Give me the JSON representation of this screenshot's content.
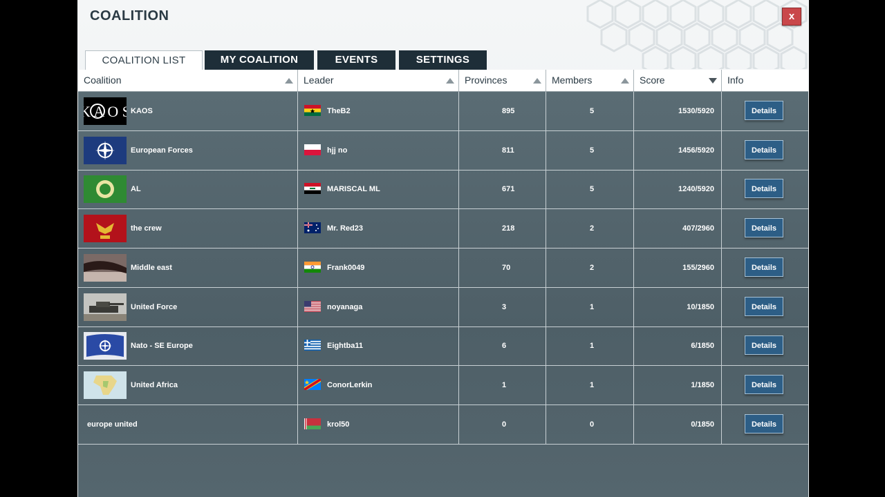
{
  "window": {
    "title": "COALITION",
    "close_label": "x"
  },
  "tabs": [
    {
      "label": "COALITION LIST",
      "active": true
    },
    {
      "label": "MY COALITION",
      "active": false
    },
    {
      "label": "EVENTS",
      "active": false
    },
    {
      "label": "SETTINGS",
      "active": false
    }
  ],
  "columns": {
    "coalition": "Coalition",
    "leader": "Leader",
    "provinces": "Provinces",
    "members": "Members",
    "score": "Score",
    "info": "Info"
  },
  "sort": {
    "column": "Score",
    "direction": "descending"
  },
  "rows": [
    {
      "coalition": "KAOS",
      "logo": "kaos-logo",
      "leader": "TheB2",
      "flag": "ghana-flag",
      "provinces": "895",
      "members": "5",
      "score": "1530/5920",
      "details": "Details"
    },
    {
      "coalition": "European Forces",
      "logo": "nato-logo",
      "leader": "hjj no",
      "flag": "poland-flag",
      "provinces": "811",
      "members": "5",
      "score": "1456/5920",
      "details": "Details"
    },
    {
      "coalition": "AL",
      "logo": "arab-league-logo",
      "leader": "MARISCAL ML",
      "flag": "iraq-flag",
      "provinces": "671",
      "members": "5",
      "score": "1240/5920",
      "details": "Details"
    },
    {
      "coalition": "the crew",
      "logo": "eagle-emblem-logo",
      "leader": "Mr. Red23",
      "flag": "australia-flag",
      "provinces": "218",
      "members": "2",
      "score": "407/2960",
      "details": "Details"
    },
    {
      "coalition": "Middle east",
      "logo": "photo-logo",
      "leader": "Frank0049",
      "flag": "india-flag",
      "provinces": "70",
      "members": "2",
      "score": "155/2960",
      "details": "Details"
    },
    {
      "coalition": "United Force",
      "logo": "tank-logo",
      "leader": "noyanaga",
      "flag": "usa-flag",
      "provinces": "3",
      "members": "1",
      "score": "10/1850",
      "details": "Details"
    },
    {
      "coalition": "Nato - SE Europe",
      "logo": "nato-waving-logo",
      "leader": "Eightba11",
      "flag": "greece-flag",
      "provinces": "6",
      "members": "1",
      "score": "6/1850",
      "details": "Details"
    },
    {
      "coalition": "United Africa",
      "logo": "africa-map-logo",
      "leader": "ConorLerkin",
      "flag": "dr-congo-flag",
      "provinces": "1",
      "members": "1",
      "score": "1/1850",
      "details": "Details"
    },
    {
      "coalition": "europe united",
      "logo": "",
      "leader": "krol50",
      "flag": "belarus-flag",
      "provinces": "0",
      "members": "0",
      "score": "0/1850",
      "details": "Details"
    }
  ],
  "colors": {
    "header_dark": "#1e2e38",
    "panel": "#55666e",
    "button": "#2d5e86",
    "close": "#c9474a"
  }
}
